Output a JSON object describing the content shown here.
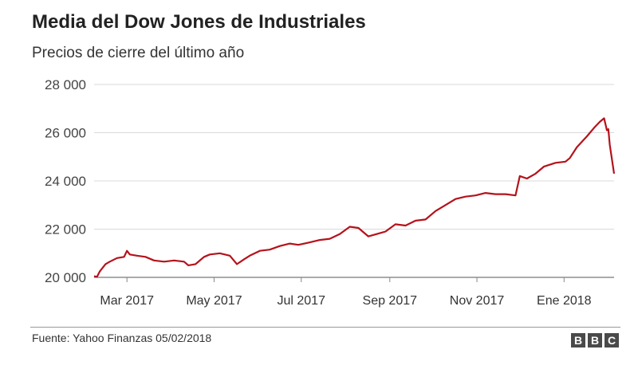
{
  "header": {
    "title": "Media del Dow Jones de Industriales",
    "subtitle": "Precios de cierre del último año"
  },
  "footer": {
    "source": "Fuente: Yahoo Finanzas 05/02/2018",
    "logo": [
      "B",
      "B",
      "C"
    ]
  },
  "colors": {
    "line": "#b5121b",
    "grid": "#d9d9d9",
    "logo_bg": "#4a4a4a"
  },
  "chart_data": {
    "type": "line",
    "title": "Media del Dow Jones de Industriales",
    "subtitle": "Precios de cierre del último año",
    "ylim": [
      20000,
      28000
    ],
    "yticks": [
      20000,
      22000,
      24000,
      26000,
      28000
    ],
    "ytick_labels": [
      "20 000",
      "22 000",
      "24 000",
      "26 000",
      "28 000"
    ],
    "xlim": [
      "2017-02-06",
      "2018-02-05"
    ],
    "xticks": [
      "2017-03-01",
      "2017-05-01",
      "2017-07-01",
      "2017-09-01",
      "2017-11-01",
      "2018-01-01"
    ],
    "xtick_labels": [
      "Mar 2017",
      "May 2017",
      "Jul 2017",
      "Sep 2017",
      "Nov 2017",
      "Ene 2018"
    ],
    "grid": "horizontal",
    "series": [
      {
        "x": [
          "2017-02-06",
          "2017-02-08",
          "2017-02-10",
          "2017-02-14",
          "2017-02-17",
          "2017-02-22",
          "2017-02-27",
          "2017-03-01",
          "2017-03-03",
          "2017-03-08",
          "2017-03-14",
          "2017-03-20",
          "2017-03-27",
          "2017-04-03",
          "2017-04-10",
          "2017-04-13",
          "2017-04-18",
          "2017-04-24",
          "2017-04-28",
          "2017-05-05",
          "2017-05-12",
          "2017-05-17",
          "2017-05-22",
          "2017-05-26",
          "2017-06-02",
          "2017-06-09",
          "2017-06-16",
          "2017-06-23",
          "2017-06-29",
          "2017-07-07",
          "2017-07-14",
          "2017-07-21",
          "2017-07-28",
          "2017-08-04",
          "2017-08-10",
          "2017-08-17",
          "2017-08-23",
          "2017-08-29",
          "2017-09-05",
          "2017-09-12",
          "2017-09-19",
          "2017-09-26",
          "2017-10-03",
          "2017-10-10",
          "2017-10-17",
          "2017-10-24",
          "2017-10-31",
          "2017-11-07",
          "2017-11-14",
          "2017-11-21",
          "2017-11-28",
          "2017-12-01",
          "2017-12-06",
          "2017-12-12",
          "2017-12-18",
          "2017-12-26",
          "2018-01-02",
          "2018-01-05",
          "2018-01-10",
          "2018-01-17",
          "2018-01-22",
          "2018-01-26",
          "2018-01-29",
          "2018-01-31",
          "2018-02-01",
          "2018-02-02",
          "2018-02-05"
        ],
        "values": [
          20050,
          20020,
          20250,
          20550,
          20650,
          20800,
          20850,
          21100,
          20950,
          20900,
          20850,
          20700,
          20650,
          20700,
          20650,
          20500,
          20550,
          20850,
          20950,
          21000,
          20900,
          20550,
          20750,
          20900,
          21100,
          21150,
          21300,
          21400,
          21350,
          21450,
          21550,
          21600,
          21800,
          22100,
          22050,
          21700,
          21800,
          21900,
          22200,
          22150,
          22350,
          22400,
          22750,
          23000,
          23250,
          23350,
          23400,
          23500,
          23450,
          23450,
          23400,
          24200,
          24100,
          24300,
          24600,
          24750,
          24800,
          24950,
          25400,
          25850,
          26200,
          26450,
          26600,
          26100,
          26150,
          25500,
          24300
        ]
      }
    ]
  }
}
